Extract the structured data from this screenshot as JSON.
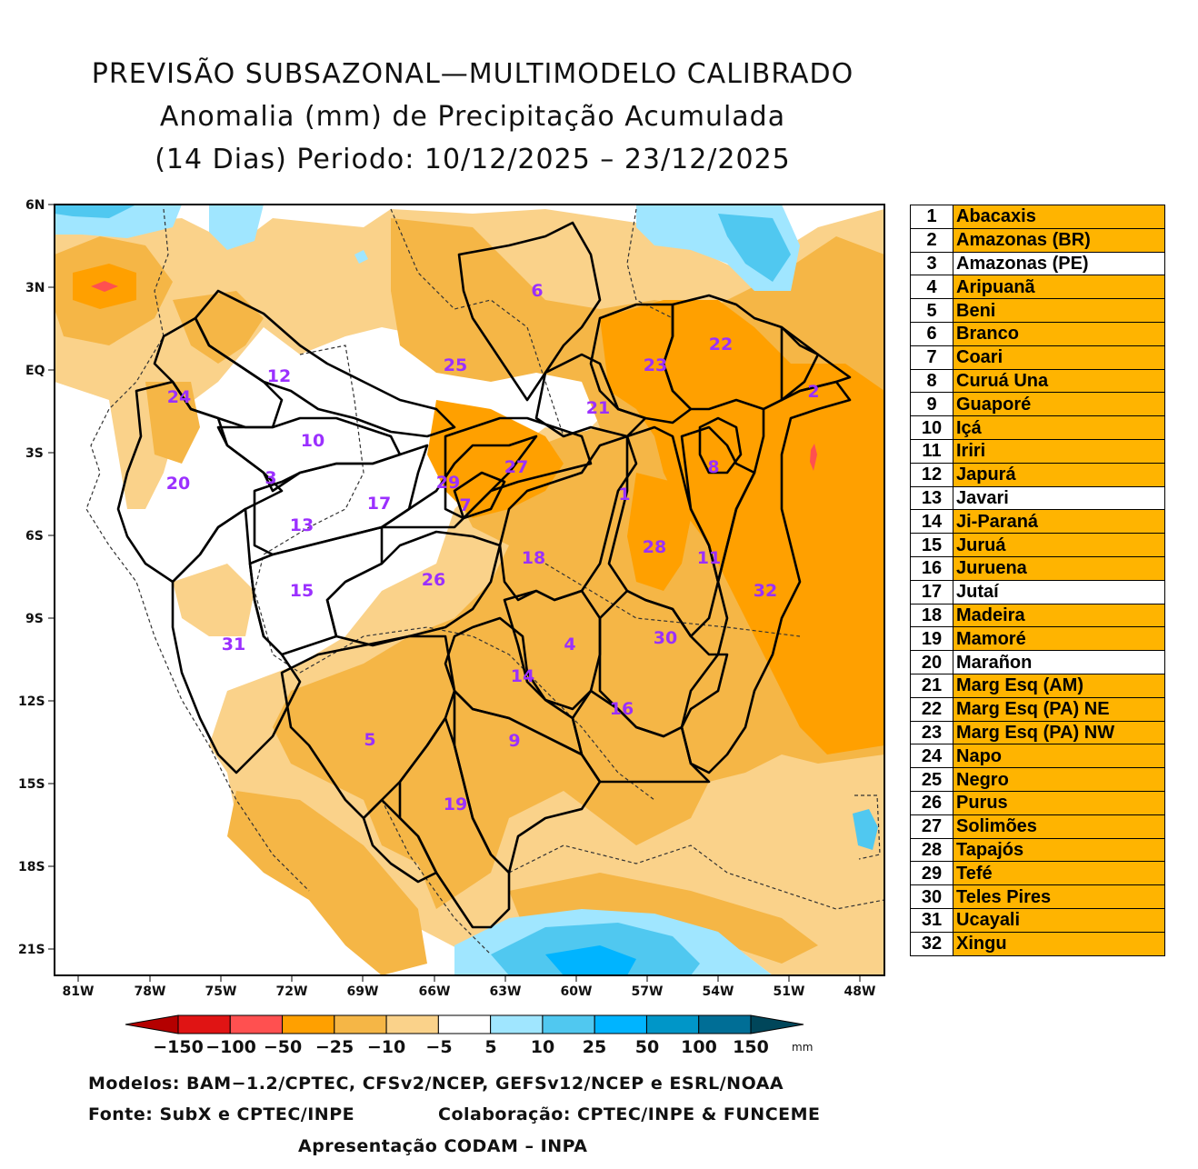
{
  "title": {
    "line1": "PREVISÃO SUBSAZONAL—MULTIMODELO CALIBRADO",
    "line2": "Anomalia (mm) de Precipitação Acumulada",
    "line3": "(14 Dias) Periodo: 10/12/2025 – 23/12/2025"
  },
  "axes": {
    "lat_labels": [
      "6N",
      "3N",
      "EQ",
      "3S",
      "6S",
      "9S",
      "12S",
      "15S",
      "18S",
      "21S"
    ],
    "lon_labels": [
      "81W",
      "78W",
      "75W",
      "72W",
      "69W",
      "66W",
      "63W",
      "60W",
      "57W",
      "54W",
      "51W",
      "48W"
    ]
  },
  "colorbar": {
    "ticks": [
      "−150",
      "−100",
      "−50",
      "−25",
      "−10",
      "−5",
      "5",
      "10",
      "25",
      "50",
      "100",
      "150"
    ],
    "unit": "mm",
    "colors": [
      "#b40000",
      "#e01414",
      "#ff5050",
      "#ffa000",
      "#f5b646",
      "#fad28a",
      "#ffffff",
      "#a0e6ff",
      "#50c8f0",
      "#00b4ff",
      "#0096c8",
      "#006e96",
      "#00465a"
    ]
  },
  "basins": [
    {
      "num": "1",
      "name": "Abacaxis",
      "highlight": true
    },
    {
      "num": "2",
      "name": "Amazonas (BR)",
      "highlight": true
    },
    {
      "num": "3",
      "name": "Amazonas (PE)",
      "highlight": false
    },
    {
      "num": "4",
      "name": "Aripuanã",
      "highlight": true
    },
    {
      "num": "5",
      "name": "Beni",
      "highlight": true
    },
    {
      "num": "6",
      "name": "Branco",
      "highlight": true
    },
    {
      "num": "7",
      "name": "Coari",
      "highlight": true
    },
    {
      "num": "8",
      "name": "Curuá Una",
      "highlight": true
    },
    {
      "num": "9",
      "name": "Guaporé",
      "highlight": true
    },
    {
      "num": "10",
      "name": "Içá",
      "highlight": true
    },
    {
      "num": "11",
      "name": "Iriri",
      "highlight": true
    },
    {
      "num": "12",
      "name": "Japurá",
      "highlight": true
    },
    {
      "num": "13",
      "name": "Javari",
      "highlight": false
    },
    {
      "num": "14",
      "name": "Ji-Paraná",
      "highlight": true
    },
    {
      "num": "15",
      "name": "Juruá",
      "highlight": true
    },
    {
      "num": "16",
      "name": "Juruena",
      "highlight": true
    },
    {
      "num": "17",
      "name": "Jutaí",
      "highlight": false
    },
    {
      "num": "18",
      "name": "Madeira",
      "highlight": true
    },
    {
      "num": "19",
      "name": "Mamoré",
      "highlight": true
    },
    {
      "num": "20",
      "name": "Marañon",
      "highlight": false
    },
    {
      "num": "21",
      "name": "Marg Esq (AM)",
      "highlight": true
    },
    {
      "num": "22",
      "name": "Marg Esq (PA) NE",
      "highlight": true
    },
    {
      "num": "23",
      "name": "Marg Esq (PA) NW",
      "highlight": true
    },
    {
      "num": "24",
      "name": "Napo",
      "highlight": true
    },
    {
      "num": "25",
      "name": "Negro",
      "highlight": true
    },
    {
      "num": "26",
      "name": "Purus",
      "highlight": true
    },
    {
      "num": "27",
      "name": "Solimões",
      "highlight": true
    },
    {
      "num": "28",
      "name": "Tapajós",
      "highlight": true
    },
    {
      "num": "29",
      "name": "Tefé",
      "highlight": true
    },
    {
      "num": "30",
      "name": "Teles Pires",
      "highlight": true
    },
    {
      "num": "31",
      "name": "Ucayali",
      "highlight": true
    },
    {
      "num": "32",
      "name": "Xingu",
      "highlight": true
    }
  ],
  "colors": {
    "highlight": "#ffb400",
    "plain": "#ffffff",
    "basin_label": "#9b30ff"
  },
  "footer": {
    "models": "Modelos: BAM−1.2/CPTEC, CFSv2/NCEP, GEFSv12/NCEP e ESRL/NOAA",
    "source": "Fonte: SubX e CPTEC/INPE",
    "collab": "Colaboração: CPTEC/INPE & FUNCEME",
    "presentation": "Apresentação CODAM – INPA"
  }
}
